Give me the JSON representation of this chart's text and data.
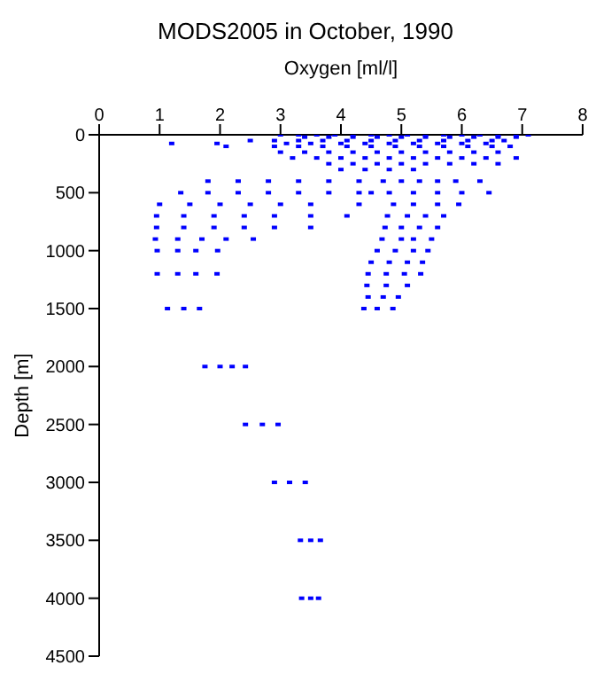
{
  "chart_data": {
    "type": "scatter",
    "title": "MODS2005 in October, 1990",
    "xlabel": "Oxygen [ml/l]",
    "ylabel": "Depth [m]",
    "xlim": [
      0,
      8
    ],
    "xticks": [
      0,
      1,
      2,
      3,
      4,
      5,
      6,
      7,
      8
    ],
    "ylim": [
      4500,
      0
    ],
    "yticks": [
      0,
      500,
      1000,
      1500,
      2000,
      2500,
      3000,
      3500,
      4000,
      4500
    ],
    "grid": false,
    "legend": false,
    "marker": "square",
    "series": [
      {
        "color": "#0000ff",
        "x": [
          3.0,
          3.3,
          3.6,
          3.9,
          4.2,
          4.5,
          4.8,
          5.1,
          5.4,
          5.7,
          6.0,
          6.3,
          6.6,
          6.9,
          7.1,
          3.4,
          3.8,
          4.2,
          4.6,
          5.0,
          5.4,
          5.8,
          6.2,
          6.6,
          6.9,
          2.5,
          2.9,
          3.3,
          3.7,
          4.1,
          4.5,
          4.9,
          5.3,
          5.7,
          6.1,
          6.5,
          6.7,
          1.2,
          1.95,
          3.1,
          3.5,
          4.0,
          4.4,
          4.8,
          5.2,
          5.6,
          6.0,
          6.4,
          2.1,
          2.9,
          3.3,
          3.7,
          4.1,
          4.5,
          4.9,
          5.3,
          5.7,
          6.1,
          6.5,
          6.8,
          3.0,
          3.4,
          3.8,
          4.2,
          4.6,
          5.0,
          5.4,
          5.8,
          6.2,
          6.6,
          3.2,
          3.6,
          4.0,
          4.4,
          4.8,
          5.2,
          5.6,
          6.0,
          6.4,
          6.9,
          3.8,
          4.2,
          4.6,
          5.0,
          5.4,
          5.8,
          6.2,
          6.6,
          4.0,
          4.4,
          4.8,
          5.2,
          1.8,
          2.3,
          2.8,
          3.3,
          3.8,
          4.3,
          4.7,
          5.0,
          5.3,
          5.6,
          5.9,
          6.3,
          1.35,
          1.8,
          2.3,
          2.8,
          3.3,
          3.8,
          4.3,
          4.5,
          4.8,
          5.2,
          5.6,
          6.0,
          6.45,
          1.0,
          1.5,
          2.0,
          2.5,
          3.0,
          3.5,
          4.3,
          4.87,
          5.2,
          5.6,
          5.95,
          0.95,
          1.4,
          1.9,
          2.4,
          2.9,
          3.5,
          4.1,
          4.77,
          5.1,
          5.4,
          5.7,
          0.95,
          1.4,
          1.9,
          2.4,
          2.9,
          3.5,
          4.73,
          5.0,
          5.3,
          5.6,
          0.93,
          1.3,
          1.7,
          2.1,
          2.55,
          4.68,
          5.0,
          5.2,
          5.5,
          0.96,
          1.3,
          1.6,
          1.96,
          4.6,
          4.9,
          5.2,
          5.44,
          4.5,
          4.8,
          5.1,
          5.35,
          0.96,
          1.3,
          1.6,
          1.95,
          4.45,
          4.75,
          5.05,
          5.32,
          4.43,
          4.75,
          5.1,
          4.45,
          4.7,
          4.95,
          1.13,
          1.4,
          1.66,
          4.38,
          4.6,
          4.86,
          1.75,
          2.0,
          2.2,
          2.42,
          2.42,
          2.7,
          2.96,
          2.9,
          3.15,
          3.41,
          3.33,
          3.5,
          3.66,
          3.35,
          3.5,
          3.63
        ],
        "values": [
          0,
          0,
          0,
          0,
          0,
          0,
          0,
          0,
          0,
          0,
          0,
          0,
          0,
          0,
          0,
          20,
          20,
          20,
          20,
          20,
          20,
          20,
          20,
          20,
          20,
          50,
          50,
          50,
          50,
          50,
          50,
          50,
          50,
          50,
          50,
          50,
          50,
          75,
          75,
          75,
          75,
          75,
          75,
          75,
          75,
          75,
          75,
          75,
          100,
          100,
          100,
          100,
          100,
          100,
          100,
          100,
          100,
          100,
          100,
          100,
          150,
          150,
          150,
          150,
          150,
          150,
          150,
          150,
          150,
          150,
          200,
          200,
          200,
          200,
          200,
          200,
          200,
          200,
          200,
          200,
          250,
          250,
          250,
          250,
          250,
          250,
          250,
          250,
          300,
          300,
          300,
          300,
          400,
          400,
          400,
          400,
          400,
          400,
          400,
          400,
          400,
          400,
          400,
          400,
          500,
          500,
          500,
          500,
          500,
          500,
          500,
          500,
          500,
          500,
          500,
          500,
          500,
          600,
          600,
          600,
          600,
          600,
          600,
          600,
          600,
          600,
          600,
          600,
          700,
          700,
          700,
          700,
          700,
          700,
          700,
          700,
          700,
          700,
          700,
          800,
          800,
          800,
          800,
          800,
          800,
          800,
          800,
          800,
          800,
          900,
          900,
          900,
          900,
          900,
          900,
          900,
          900,
          900,
          1000,
          1000,
          1000,
          1000,
          1000,
          1000,
          1000,
          1000,
          1100,
          1100,
          1100,
          1100,
          1200,
          1200,
          1200,
          1200,
          1200,
          1200,
          1200,
          1200,
          1300,
          1300,
          1300,
          1400,
          1400,
          1400,
          1500,
          1500,
          1500,
          1500,
          1500,
          1500,
          2000,
          2000,
          2000,
          2000,
          2500,
          2500,
          2500,
          3000,
          3000,
          3000,
          3500,
          3500,
          3500,
          4000,
          4000,
          4000
        ]
      }
    ]
  }
}
